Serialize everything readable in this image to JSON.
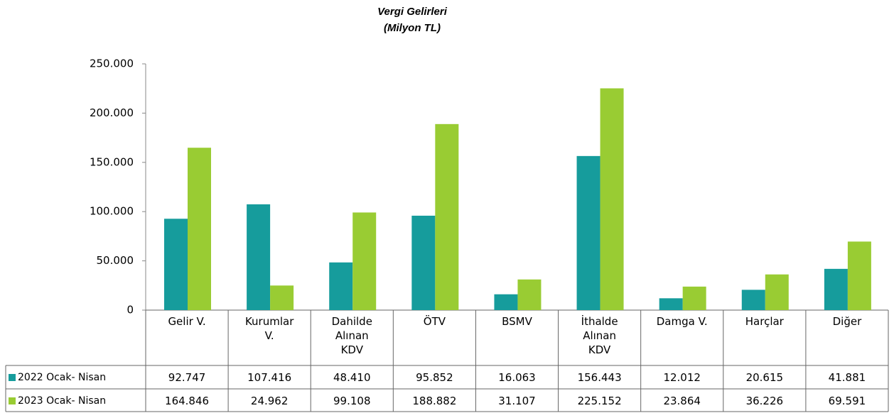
{
  "chart_data": {
    "type": "bar",
    "title": "Vergi Gelirleri",
    "subtitle": "(Milyon TL)",
    "categories": [
      "Gelir V.",
      "Kurumlar V.",
      "Dahilde Alınan KDV",
      "ÖTV",
      "BSMV",
      "İthalde Alınan KDV",
      "Damga V.",
      "Harçlar",
      "Diğer"
    ],
    "series": [
      {
        "name": "2022 Ocak- Nisan",
        "color": "#169c9c",
        "values": [
          92747,
          107416,
          48410,
          95852,
          16063,
          156443,
          12012,
          20615,
          41881
        ],
        "value_labels": [
          "92.747",
          "107.416",
          "48.410",
          "95.852",
          "16.063",
          "156.443",
          "12.012",
          "20.615",
          "41.881"
        ]
      },
      {
        "name": "2023 Ocak- Nisan",
        "color": "#99cc33",
        "values": [
          164846,
          24962,
          99108,
          188882,
          31107,
          225152,
          23864,
          36226,
          69591
        ],
        "value_labels": [
          "164.846",
          "24.962",
          "99.108",
          "188.882",
          "31.107",
          "225.152",
          "23.864",
          "36.226",
          "69.591"
        ]
      }
    ],
    "ylim": [
      0,
      250000
    ],
    "yticks": [
      0,
      {
        "value": 50000,
        "label": "50.000"
      },
      {
        "value": 100000,
        "label": "100.000"
      },
      {
        "value": 150000,
        "label": "150.000"
      },
      {
        "value": 200000,
        "label": "200.000"
      },
      {
        "value": 250000,
        "label": "250.000"
      }
    ],
    "grid": false
  }
}
